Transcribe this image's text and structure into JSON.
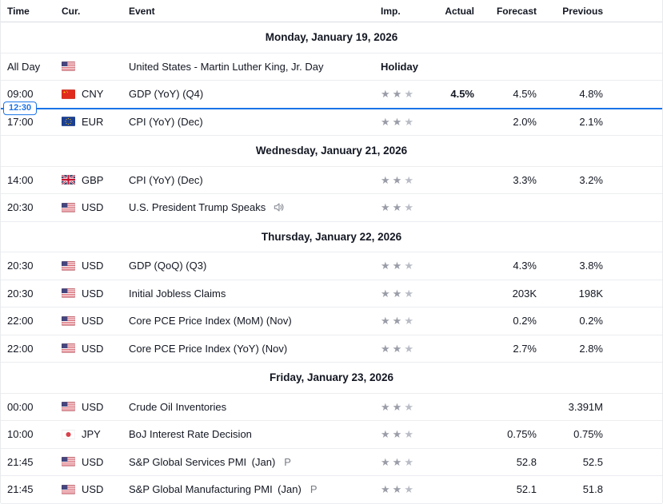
{
  "header": {
    "columns": [
      "Time",
      "Cur.",
      "Event",
      "Imp.",
      "Actual",
      "Forecast",
      "Previous"
    ]
  },
  "time_marker": {
    "label": "12:30"
  },
  "colors": {
    "accent_blue": "#1a73e8",
    "star_gray": "#9a9da8",
    "muted_gray": "#787b86"
  },
  "sections": [
    {
      "date": "Monday, January 19, 2026",
      "rows": [
        {
          "time": "All Day",
          "flag": "us",
          "currency": "",
          "event": "United States - Martin Luther King, Jr. Day",
          "holiday": "Holiday",
          "imp": 0,
          "actual": "",
          "forecast": "",
          "previous": ""
        },
        {
          "time": "09:00",
          "flag": "cn",
          "currency": "CNY",
          "event": "GDP (YoY) (Q4)",
          "imp": 3,
          "actual": "4.5%",
          "forecast": "4.5%",
          "previous": "4.8%",
          "time_marker": true
        },
        {
          "time": "17:00",
          "flag": "eu",
          "currency": "EUR",
          "event": "CPI (YoY) (Dec)",
          "imp": 3,
          "actual": "",
          "forecast": "2.0%",
          "previous": "2.1%"
        }
      ]
    },
    {
      "date": "Wednesday, January 21, 2026",
      "rows": [
        {
          "time": "14:00",
          "flag": "gb",
          "currency": "GBP",
          "event": "CPI (YoY) (Dec)",
          "imp": 3,
          "actual": "",
          "forecast": "3.3%",
          "previous": "3.2%"
        },
        {
          "time": "20:30",
          "flag": "us",
          "currency": "USD",
          "event": "U.S. President Trump Speaks",
          "speech": true,
          "imp": 3,
          "actual": "",
          "forecast": "",
          "previous": ""
        }
      ]
    },
    {
      "date": "Thursday, January 22, 2026",
      "rows": [
        {
          "time": "20:30",
          "flag": "us",
          "currency": "USD",
          "event": "GDP (QoQ) (Q3)",
          "imp": 3,
          "actual": "",
          "forecast": "4.3%",
          "previous": "3.8%"
        },
        {
          "time": "20:30",
          "flag": "us",
          "currency": "USD",
          "event": "Initial Jobless Claims",
          "imp": 3,
          "actual": "",
          "forecast": "203K",
          "previous": "198K"
        },
        {
          "time": "22:00",
          "flag": "us",
          "currency": "USD",
          "event": "Core PCE Price Index (MoM) (Nov)",
          "imp": 3,
          "actual": "",
          "forecast": "0.2%",
          "previous": "0.2%"
        },
        {
          "time": "22:00",
          "flag": "us",
          "currency": "USD",
          "event": "Core PCE Price Index (YoY) (Nov)",
          "imp": 3,
          "actual": "",
          "forecast": "2.7%",
          "previous": "2.8%"
        }
      ]
    },
    {
      "date": "Friday, January 23, 2026",
      "rows": [
        {
          "time": "00:00",
          "flag": "us",
          "currency": "USD",
          "event": "Crude Oil Inventories",
          "imp": 3,
          "actual": "",
          "forecast": "",
          "previous": "3.391M"
        },
        {
          "time": "10:00",
          "flag": "jp",
          "currency": "JPY",
          "event": "BoJ Interest Rate Decision",
          "imp": 3,
          "actual": "",
          "forecast": "0.75%",
          "previous": "0.75%"
        },
        {
          "time": "21:45",
          "flag": "us",
          "currency": "USD",
          "event": "S&P Global Services PMI (Jan)",
          "preliminary": "P",
          "imp": 3,
          "actual": "",
          "forecast": "52.8",
          "previous": "52.5"
        },
        {
          "time": "21:45",
          "flag": "us",
          "currency": "USD",
          "event": "S&P Global Manufacturing PMI (Jan)",
          "preliminary": "P",
          "imp": 3,
          "actual": "",
          "forecast": "52.1",
          "previous": "51.8"
        }
      ]
    }
  ]
}
